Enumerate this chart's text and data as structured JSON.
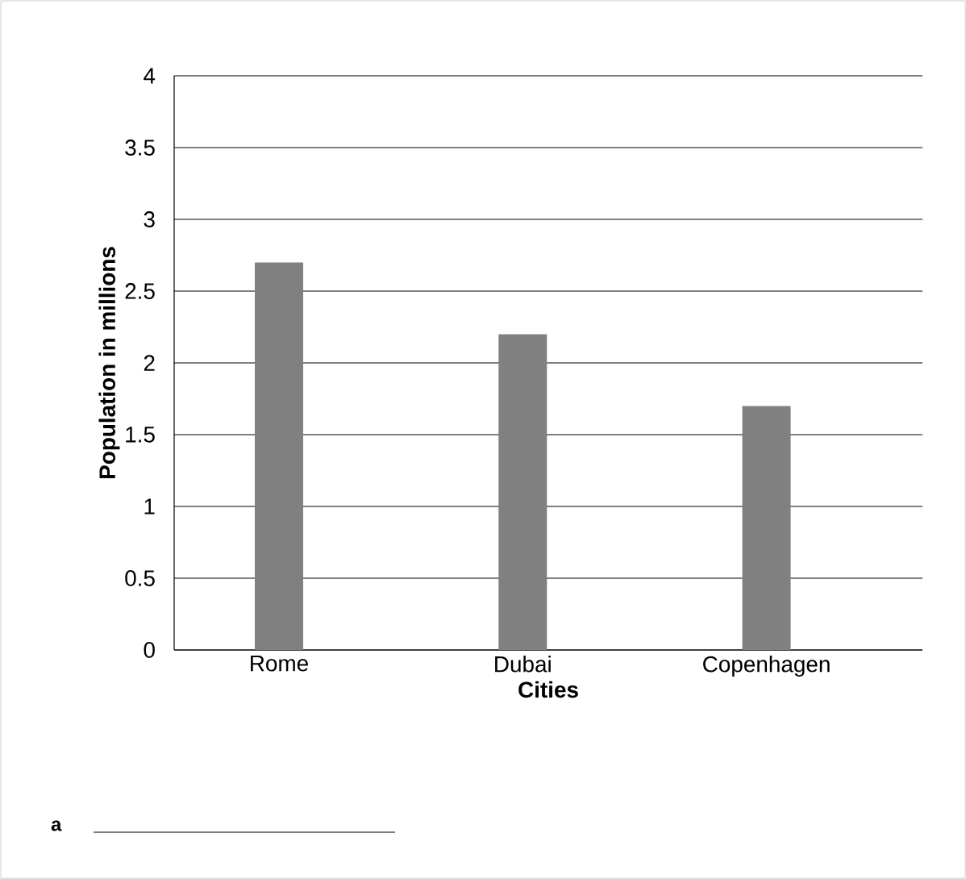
{
  "chart_data": {
    "type": "bar",
    "xlabel": "Cities",
    "ylabel": "Population in millions",
    "categories": [
      "Rome",
      "Dubai",
      "Copenhagen"
    ],
    "values": [
      2.7,
      2.2,
      1.7
    ],
    "color": "#808080",
    "ylim": [
      0,
      4
    ],
    "yticks": [
      0,
      0.5,
      1,
      1.5,
      2,
      2.5,
      3,
      3.5,
      4
    ],
    "grid": "y",
    "annotations": [
      "a"
    ]
  }
}
